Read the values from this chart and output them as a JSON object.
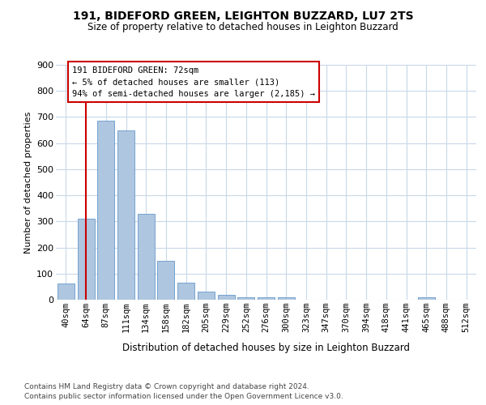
{
  "title1": "191, BIDEFORD GREEN, LEIGHTON BUZZARD, LU7 2TS",
  "title2": "Size of property relative to detached houses in Leighton Buzzard",
  "xlabel": "Distribution of detached houses by size in Leighton Buzzard",
  "ylabel": "Number of detached properties",
  "categories": [
    "40sqm",
    "64sqm",
    "87sqm",
    "111sqm",
    "134sqm",
    "158sqm",
    "182sqm",
    "205sqm",
    "229sqm",
    "252sqm",
    "276sqm",
    "300sqm",
    "323sqm",
    "347sqm",
    "370sqm",
    "394sqm",
    "418sqm",
    "441sqm",
    "465sqm",
    "488sqm",
    "512sqm"
  ],
  "values": [
    62,
    310,
    685,
    650,
    330,
    150,
    65,
    30,
    18,
    10,
    10,
    8,
    0,
    0,
    0,
    0,
    0,
    0,
    10,
    0,
    0
  ],
  "bar_color": "#aec6df",
  "bar_edge_color": "#6699cc",
  "ylim": [
    0,
    900
  ],
  "yticks": [
    0,
    100,
    200,
    300,
    400,
    500,
    600,
    700,
    800,
    900
  ],
  "annotation_text": "191 BIDEFORD GREEN: 72sqm\n← 5% of detached houses are smaller (113)\n94% of semi-detached houses are larger (2,185) →",
  "annotation_box_color": "#ffffff",
  "annotation_box_edge": "#cc0000",
  "red_line_x": 1.0,
  "footer1": "Contains HM Land Registry data © Crown copyright and database right 2024.",
  "footer2": "Contains public sector information licensed under the Open Government Licence v3.0.",
  "background_color": "#ffffff",
  "grid_color": "#c8d8e8",
  "title_fontsize": 10,
  "subtitle_fontsize": 8.5,
  "ylabel_fontsize": 8,
  "xlabel_fontsize": 8.5,
  "tick_fontsize": 7.5,
  "ytick_fontsize": 8,
  "footer_fontsize": 6.5,
  "annot_fontsize": 7.5
}
